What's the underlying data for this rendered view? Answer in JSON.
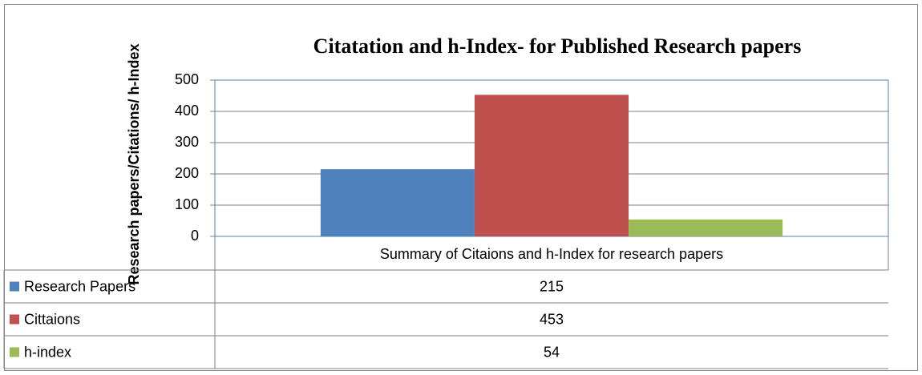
{
  "chart_data": {
    "type": "bar",
    "title": "Citatation  and h-Index- for Published Research papers",
    "y_label": "Research papers/Citations/ h-Index",
    "categories": [
      "Summary of Citaions and h-Index for research papers"
    ],
    "series": [
      {
        "name": "Research Papers",
        "color": "#4f81bd",
        "values": [
          215
        ]
      },
      {
        "name": "Cittaions",
        "color": "#c0504d",
        "values": [
          453
        ]
      },
      {
        "name": "h-index",
        "color": "#9bbb59",
        "values": [
          54
        ]
      }
    ],
    "ylim": [
      0,
      500
    ],
    "yticks": [
      0,
      100,
      200,
      300,
      400,
      500
    ],
    "grid": true,
    "data_table": true
  }
}
